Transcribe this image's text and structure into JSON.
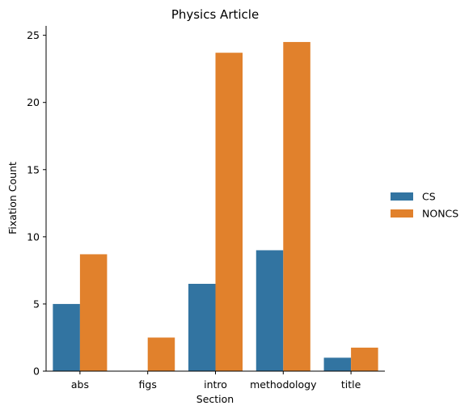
{
  "chart_data": {
    "type": "bar",
    "title": "Physics Article",
    "xlabel": "Section",
    "ylabel": "Fixation Count",
    "categories": [
      "abs",
      "figs",
      "intro",
      "methodology",
      "title"
    ],
    "series": [
      {
        "name": "CS",
        "color": "#3274a1",
        "values": [
          5.0,
          0,
          6.5,
          9.0,
          1.0
        ]
      },
      {
        "name": "NONCS",
        "color": "#e1812c",
        "values": [
          8.7,
          2.5,
          23.7,
          24.5,
          1.75
        ]
      }
    ],
    "ylim": [
      0,
      25.7
    ],
    "yticks": [
      0,
      5,
      10,
      15,
      20,
      25
    ],
    "grid": false,
    "legend_position": "right"
  }
}
